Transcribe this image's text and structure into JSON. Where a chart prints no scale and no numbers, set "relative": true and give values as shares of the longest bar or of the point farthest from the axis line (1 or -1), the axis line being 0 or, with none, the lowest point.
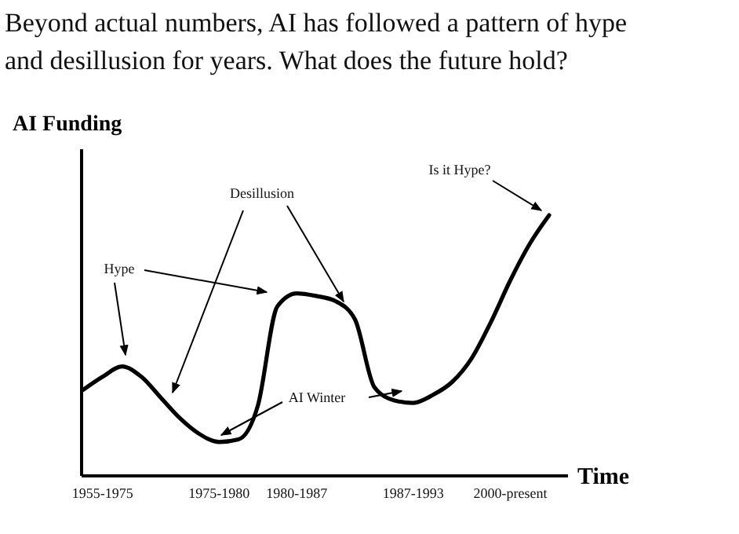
{
  "chart_data": {
    "type": "line",
    "title": "Beyond actual numbers, AI has followed a pattern of hype and desillusion for years. What does the future hold?",
    "ylabel": "AI Funding",
    "xlabel": "Time",
    "relative": true,
    "categories": [
      null,
      "1955-1975",
      null,
      null,
      null,
      null,
      null,
      "1975-1980",
      null,
      null,
      null,
      "1980-1987",
      null,
      null,
      null,
      null,
      null,
      "1987-1993",
      null,
      null,
      null,
      null,
      "2000-present",
      null,
      null
    ],
    "series": [
      {
        "color": "#000000",
        "values": [
          0.33,
          0.38,
          0.42,
          0.38,
          0.3,
          0.22,
          0.16,
          0.13,
          0.14,
          0.27,
          0.65,
          0.7,
          0.69,
          0.67,
          0.6,
          0.34,
          0.29,
          0.28,
          0.31,
          0.36,
          0.45,
          0.59,
          0.75,
          0.89,
          1
        ]
      }
    ],
    "annotations": [
      "Hype",
      "Desillusion",
      "AI Winter",
      "Is it Hype?"
    ]
  }
}
